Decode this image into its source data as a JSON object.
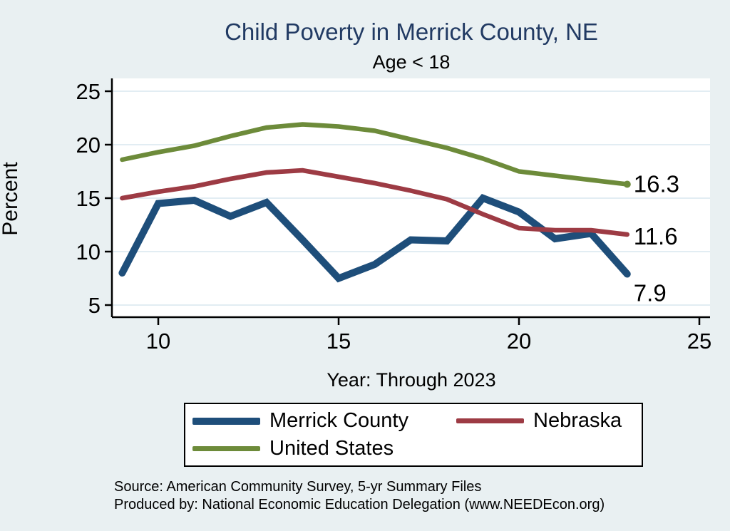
{
  "title": "Child Poverty in Merrick County, NE",
  "subtitle": "Age < 18",
  "chart_data": {
    "type": "line",
    "x": [
      9,
      10,
      11,
      12,
      13,
      14,
      15,
      16,
      17,
      18,
      19,
      20,
      21,
      22,
      23
    ],
    "series": [
      {
        "name": "Merrick County",
        "color": "#1e4e7a",
        "stroke_width": 10,
        "values": [
          8.0,
          14.5,
          14.8,
          13.3,
          14.6,
          11.1,
          7.5,
          8.8,
          11.1,
          11.0,
          15.0,
          13.7,
          11.2,
          11.7,
          7.9
        ],
        "end_label": "7.9",
        "end_marker": false
      },
      {
        "name": "Nebraska",
        "color": "#9d3b44",
        "stroke_width": 6.5,
        "values": [
          15.0,
          15.6,
          16.1,
          16.8,
          17.4,
          17.6,
          17.0,
          16.4,
          15.7,
          14.9,
          13.5,
          12.2,
          12.0,
          12.0,
          11.6
        ],
        "end_label": "11.6",
        "end_marker": false
      },
      {
        "name": "United States",
        "color": "#6d8b3a",
        "stroke_width": 6.5,
        "values": [
          18.6,
          19.3,
          19.9,
          20.8,
          21.6,
          21.9,
          21.7,
          21.3,
          20.5,
          19.7,
          18.7,
          17.5,
          17.1,
          16.7,
          16.3
        ],
        "end_label": "16.3",
        "end_marker": true
      }
    ],
    "title": "Child Poverty in Merrick County, NE",
    "subtitle": "Age < 18",
    "xlabel": "Year: Through 2023",
    "ylabel": "Percent",
    "xticks": [
      10,
      15,
      20,
      25
    ],
    "yticks": [
      5,
      10,
      15,
      20,
      25
    ],
    "xlim": [
      8.7,
      25.3
    ],
    "ylim": [
      3.9,
      26.2
    ],
    "grid": true,
    "legend_position": "bottom",
    "plot_bg": "#ffffff",
    "grid_color": "#e2edf3",
    "axis_color": "#000000"
  },
  "legend": {
    "items": [
      {
        "label": "Merrick County"
      },
      {
        "label": "Nebraska"
      },
      {
        "label": "United States"
      }
    ]
  },
  "footer": {
    "line1": "Source: American Community Survey, 5-yr Summary Files",
    "line2": "Produced by: National Economic Education Delegation (www.NEEDEcon.org)"
  }
}
